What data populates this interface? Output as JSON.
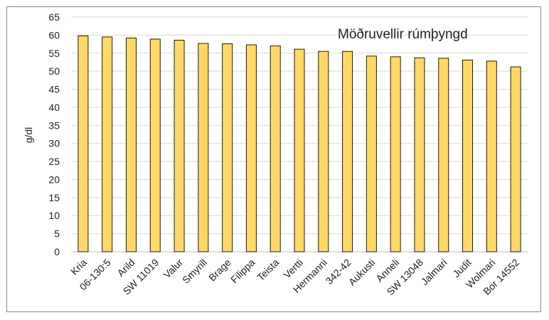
{
  "chart_data": {
    "type": "bar",
    "title": "Möðruvellir rúmþyngd",
    "xlabel": "",
    "ylabel": "g/dl",
    "ylim": [
      0,
      65
    ],
    "yticks": [
      0,
      5,
      10,
      15,
      20,
      25,
      30,
      35,
      40,
      45,
      50,
      55,
      60,
      65
    ],
    "grid": true,
    "categories": [
      "Kria",
      "06-130:5",
      "Arild",
      "SW 11019",
      "Valur",
      "Smyrill",
      "Brage",
      "Filippa",
      "Teista",
      "Vertti",
      "Hermanni",
      "342-42",
      "Aukusti",
      "Anneli",
      "SW 13048",
      "Jalmari",
      "Judit",
      "Wolmari",
      "Bor 14552"
    ],
    "values": [
      59.8,
      59.5,
      59.2,
      58.9,
      58.6,
      57.7,
      57.6,
      57.3,
      57.0,
      56.1,
      55.5,
      55.5,
      54.2,
      54.0,
      53.7,
      53.6,
      53.1,
      52.8,
      51.2
    ],
    "colors": {
      "bar_fill": "#FFD966",
      "bar_stroke": "#1a1a1a",
      "grid": "#d9d9d9"
    }
  }
}
